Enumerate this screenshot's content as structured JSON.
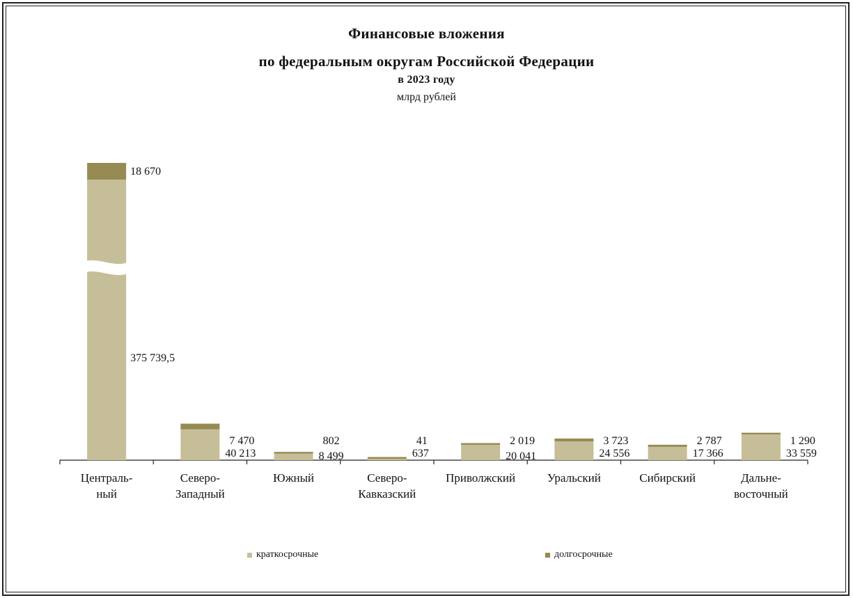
{
  "title": {
    "line1": "Финансовые вложения",
    "line2": "по федеральным округам Российской Федерации",
    "line3": "в 2023 году",
    "unit": "млрд рублей"
  },
  "colors": {
    "short_term": "#c6be98",
    "long_term": "#958b53",
    "axis": "#222222"
  },
  "chart_data": {
    "type": "bar",
    "stacked": true,
    "broken_axis": true,
    "categories": [
      [
        "Централь-",
        "ный"
      ],
      [
        "Северо-",
        "Западный"
      ],
      [
        "Южный"
      ],
      [
        "Северо-",
        "Кавказский"
      ],
      [
        "Приволжский"
      ],
      [
        "Уральский"
      ],
      [
        "Сибирский"
      ],
      [
        "Дальне-",
        "восточный"
      ]
    ],
    "series": [
      {
        "name": "краткосрочные",
        "values": [
          375739.5,
          40213,
          8499,
          637,
          20041,
          24556,
          17366,
          33559
        ],
        "labels": [
          "375 739,5",
          "40 213",
          "8 499",
          "637",
          "20 041",
          "24 556",
          "17 366",
          "33 559"
        ]
      },
      {
        "name": "долгосрочные",
        "values": [
          18670,
          7470,
          802,
          41,
          2019,
          3723,
          2787,
          1290
        ],
        "labels": [
          "18 670",
          "7 470",
          "802",
          "41",
          "2 019",
          "3 723",
          "2 787",
          "1 290"
        ]
      }
    ],
    "legend_position": "bottom",
    "grid": false
  }
}
